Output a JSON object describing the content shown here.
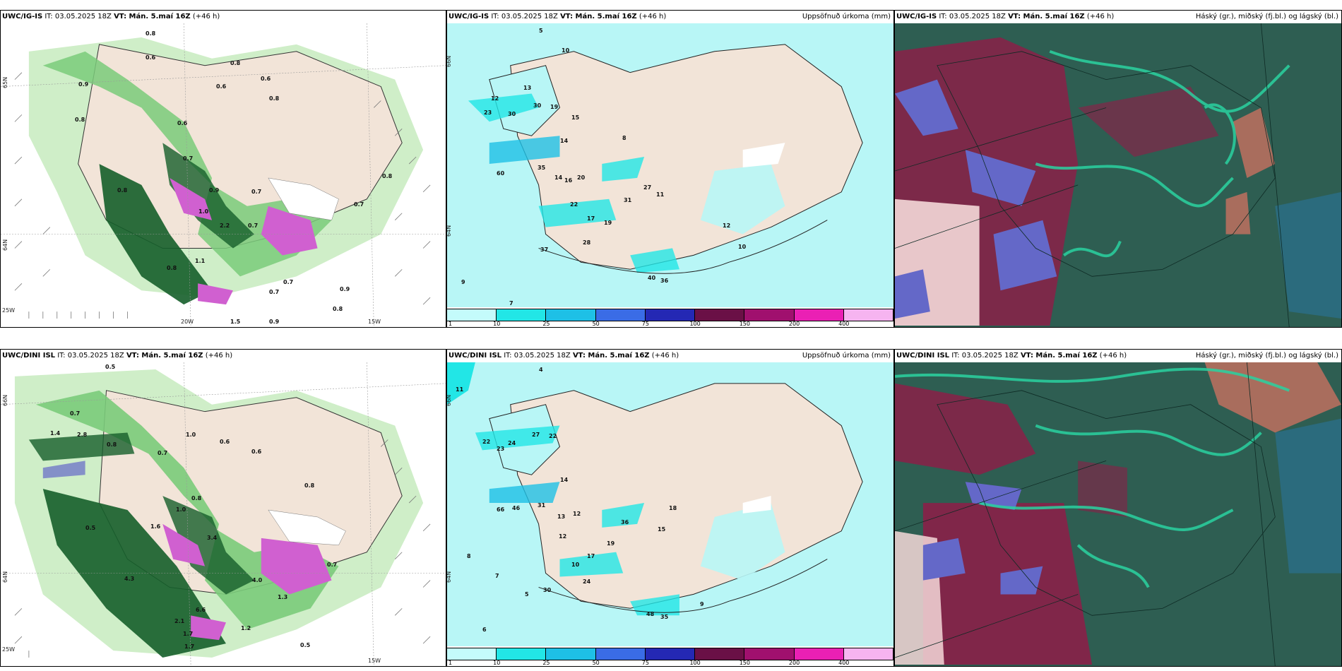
{
  "rows": [
    {
      "model": "UWC/IG-IS",
      "it": "IT: 03.05.2025 18Z",
      "vt": "VT: Mán. 5.maí 16Z",
      "lead": "(+46 h)",
      "wind_panel": {
        "lat_top": "65N",
        "lat_mid": "64N",
        "lon_left": "25W",
        "lon_mid": "20W",
        "lon_right": "15W",
        "values": [
          "0.8",
          "0.6",
          "0.9",
          "0.8",
          "0.6",
          "0.6",
          "0.8",
          "0.8",
          "0.6",
          "0.7",
          "0.9",
          "0.8",
          "0.8",
          "0.7",
          "0.7",
          "1.0",
          "2.2",
          "0.7",
          "1.1",
          "0.8",
          "0.7",
          "0.7",
          "0.9",
          "0.8",
          "1.5",
          "0.9"
        ]
      },
      "precip_panel": {
        "title": "Uppsöfnuð úrkoma (mm)",
        "lat_top": "66N",
        "lat_mid": "64N",
        "values": [
          "5",
          "10",
          "12",
          "13",
          "23",
          "30",
          "30",
          "19",
          "15",
          "14",
          "60",
          "35",
          "14",
          "16",
          "20",
          "22",
          "17",
          "19",
          "31",
          "37",
          "28",
          "27",
          "11",
          "40",
          "36",
          "12",
          "10",
          "8",
          "7",
          "9"
        ]
      },
      "cloud_panel": {
        "title": "Háský (gr.), miðský (fj.bl.) og lágský (bl.)"
      }
    },
    {
      "model": "UWC/DINI ISL",
      "it": "IT: 03.05.2025 18Z",
      "vt": "VT: Mán. 5.maí 16Z",
      "lead": "(+46 h)",
      "wind_panel": {
        "lat_top": "66N",
        "lat_mid": "64N",
        "lon_left": "25W",
        "lon_mid": "20W",
        "lon_right": "15W",
        "values": [
          "0.5",
          "0.7",
          "1.4",
          "2.8",
          "0.8",
          "1.0",
          "0.7",
          "0.6",
          "0.6",
          "0.8",
          "0.5",
          "1.0",
          "0.8",
          "1.6",
          "4.3",
          "3.4",
          "0.7",
          "2.1",
          "1.7",
          "1.2",
          "0.5",
          "4.0",
          "1.3",
          "6.6",
          "1.7"
        ]
      },
      "precip_panel": {
        "title": "Uppsöfnuð úrkoma (mm)",
        "lat_top": "66N",
        "lat_mid": "64N",
        "values": [
          "4",
          "11",
          "22",
          "24",
          "27",
          "22",
          "23",
          "14",
          "66",
          "46",
          "31",
          "13",
          "12",
          "36",
          "19",
          "18",
          "30",
          "24",
          "48",
          "35",
          "15",
          "12",
          "17",
          "10",
          "9",
          "8",
          "7",
          "6",
          "5"
        ]
      },
      "cloud_panel": {
        "title": "Háský (gr.), miðský (fj.bl.) og lágský (bl.)"
      }
    }
  ],
  "colorbar": {
    "ticks": [
      "1",
      "10",
      "25",
      "50",
      "75",
      "100",
      "150",
      "200",
      "400"
    ],
    "colors": [
      "#c4fbfb",
      "#22e6e6",
      "#1ec0e6",
      "#3a6ce6",
      "#2428b4",
      "#6a1046",
      "#a0106e",
      "#ea20b4",
      "#f6b4f0"
    ]
  },
  "colors": {
    "land": "#f2e4d8",
    "ocean_cyan": "#b8f6f6",
    "green_light": "#cfeec8",
    "green_mid": "#7acb7a",
    "green_dark": "#155e2a",
    "cloud_dark": "#2e5e52",
    "cloud_red": "#8a2048",
    "cloud_teal": "#2ad2a0",
    "cloud_blue": "#6468c8"
  }
}
